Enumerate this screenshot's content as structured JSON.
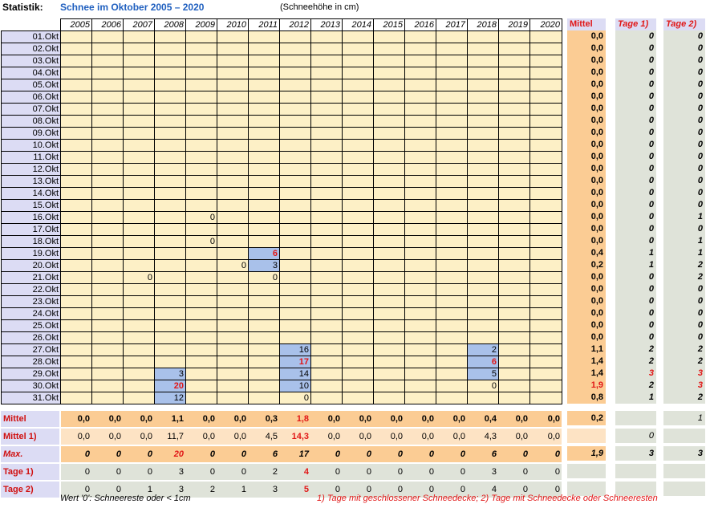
{
  "header": {
    "label": "Statistik:",
    "title": "Schnee im Oktober 2005 – 2020",
    "unit": "(Schneehöhe in cm)"
  },
  "years": [
    "2005",
    "2006",
    "2007",
    "2008",
    "2009",
    "2010",
    "2011",
    "2012",
    "2013",
    "2014",
    "2015",
    "2016",
    "2017",
    "2018",
    "2019",
    "2020"
  ],
  "side_headers": {
    "mittel": "Mittel",
    "tage1": "Tage 1)",
    "tage2": "Tage 2)"
  },
  "rows": [
    {
      "date": "01.Okt",
      "cells": {},
      "mittel": "0,0",
      "tage1": "0",
      "tage2": "0"
    },
    {
      "date": "02.Okt",
      "cells": {},
      "mittel": "0,0",
      "tage1": "0",
      "tage2": "0"
    },
    {
      "date": "03.Okt",
      "cells": {},
      "mittel": "0,0",
      "tage1": "0",
      "tage2": "0"
    },
    {
      "date": "04.Okt",
      "cells": {},
      "mittel": "0,0",
      "tage1": "0",
      "tage2": "0"
    },
    {
      "date": "05.Okt",
      "cells": {},
      "mittel": "0,0",
      "tage1": "0",
      "tage2": "0"
    },
    {
      "date": "06.Okt",
      "cells": {},
      "mittel": "0,0",
      "tage1": "0",
      "tage2": "0"
    },
    {
      "date": "07.Okt",
      "cells": {},
      "mittel": "0,0",
      "tage1": "0",
      "tage2": "0"
    },
    {
      "date": "08.Okt",
      "cells": {},
      "mittel": "0,0",
      "tage1": "0",
      "tage2": "0"
    },
    {
      "date": "09.Okt",
      "cells": {},
      "mittel": "0,0",
      "tage1": "0",
      "tage2": "0"
    },
    {
      "date": "10.Okt",
      "cells": {},
      "mittel": "0,0",
      "tage1": "0",
      "tage2": "0"
    },
    {
      "date": "11.Okt",
      "cells": {},
      "mittel": "0,0",
      "tage1": "0",
      "tage2": "0"
    },
    {
      "date": "12.Okt",
      "cells": {},
      "mittel": "0,0",
      "tage1": "0",
      "tage2": "0"
    },
    {
      "date": "13.Okt",
      "cells": {},
      "mittel": "0,0",
      "tage1": "0",
      "tage2": "0"
    },
    {
      "date": "14.Okt",
      "cells": {},
      "mittel": "0,0",
      "tage1": "0",
      "tage2": "0"
    },
    {
      "date": "15.Okt",
      "cells": {},
      "mittel": "0,0",
      "tage1": "0",
      "tage2": "0"
    },
    {
      "date": "16.Okt",
      "cells": {
        "2009": "0"
      },
      "mittel": "0,0",
      "tage1": "0",
      "tage2": "1"
    },
    {
      "date": "17.Okt",
      "cells": {},
      "mittel": "0,0",
      "tage1": "0",
      "tage2": "0"
    },
    {
      "date": "18.Okt",
      "cells": {
        "2009": "0"
      },
      "mittel": "0,0",
      "tage1": "0",
      "tage2": "1"
    },
    {
      "date": "19.Okt",
      "cells": {
        "2011": "6"
      },
      "mittel": "0,4",
      "tage1": "1",
      "tage2": "1"
    },
    {
      "date": "20.Okt",
      "cells": {
        "2010": "0",
        "2011": "3"
      },
      "mittel": "0,2",
      "tage1": "1",
      "tage2": "2"
    },
    {
      "date": "21.Okt",
      "cells": {
        "2007": "0",
        "2011": "0"
      },
      "mittel": "0,0",
      "tage1": "0",
      "tage2": "2"
    },
    {
      "date": "22.Okt",
      "cells": {},
      "mittel": "0,0",
      "tage1": "0",
      "tage2": "0"
    },
    {
      "date": "23.Okt",
      "cells": {},
      "mittel": "0,0",
      "tage1": "0",
      "tage2": "0"
    },
    {
      "date": "24.Okt",
      "cells": {},
      "mittel": "0,0",
      "tage1": "0",
      "tage2": "0"
    },
    {
      "date": "25.Okt",
      "cells": {},
      "mittel": "0,0",
      "tage1": "0",
      "tage2": "0"
    },
    {
      "date": "26.Okt",
      "cells": {},
      "mittel": "0,0",
      "tage1": "0",
      "tage2": "0"
    },
    {
      "date": "27.Okt",
      "cells": {
        "2012": "16",
        "2018": "2"
      },
      "mittel": "1,1",
      "tage1": "2",
      "tage2": "2"
    },
    {
      "date": "28.Okt",
      "cells": {
        "2012": "17",
        "2018": "6"
      },
      "mittel": "1,4",
      "tage1": "2",
      "tage2": "2"
    },
    {
      "date": "29.Okt",
      "cells": {
        "2008": "3",
        "2012": "14",
        "2018": "5"
      },
      "mittel": "1,4",
      "tage1": "3",
      "tage2": "3"
    },
    {
      "date": "30.Okt",
      "cells": {
        "2008": "20",
        "2012": "10",
        "2018": "0"
      },
      "mittel": "1,9",
      "tage1": "2",
      "tage2": "3"
    },
    {
      "date": "31.Okt",
      "cells": {
        "2008": "12",
        "2012": "0"
      },
      "mittel": "0,8",
      "tage1": "1",
      "tage2": "2"
    }
  ],
  "summary": [
    {
      "label": "Mittel",
      "values": [
        "0,0",
        "0,0",
        "0,0",
        "1,1",
        "0,0",
        "0,0",
        "0,3",
        "1,8",
        "0,0",
        "0,0",
        "0,0",
        "0,0",
        "0,0",
        "0,4",
        "0,0",
        "0,0"
      ],
      "side": "0,2",
      "tage1": "",
      "tage2": "1"
    },
    {
      "label": "Mittel 1)",
      "values": [
        "0,0",
        "0,0",
        "0,0",
        "11,7",
        "0,0",
        "0,0",
        "4,5",
        "14,3",
        "0,0",
        "0,0",
        "0,0",
        "0,0",
        "0,0",
        "4,3",
        "0,0",
        "0,0"
      ],
      "side": "",
      "tage1": "0",
      "tage2": ""
    },
    {
      "label": "Max.",
      "values": [
        "0",
        "0",
        "0",
        "20",
        "0",
        "0",
        "6",
        "17",
        "0",
        "0",
        "0",
        "0",
        "0",
        "6",
        "0",
        "0"
      ],
      "side": "1,9",
      "tage1": "3",
      "tage2": "3"
    },
    {
      "label": "Tage 1)",
      "values": [
        "0",
        "0",
        "0",
        "3",
        "0",
        "0",
        "2",
        "4",
        "0",
        "0",
        "0",
        "0",
        "0",
        "3",
        "0",
        "0"
      ],
      "side": "",
      "tage1": "",
      "tage2": ""
    },
    {
      "label": "Tage 2)",
      "values": [
        "0",
        "0",
        "1",
        "3",
        "2",
        "1",
        "3",
        "5",
        "0",
        "0",
        "0",
        "0",
        "0",
        "4",
        "0",
        "0"
      ],
      "side": "",
      "tage1": "",
      "tage2": ""
    }
  ],
  "footnotes": {
    "left": "Wert '0': Schneereste oder < 1cm",
    "right": "1) Tage mit geschlossener Schneedecke;  2) Tage mit Schneedecke oder Schneeresten"
  },
  "colors": {
    "title_blue": "#1f5fbf",
    "accent_red": "#e11717",
    "cell_fill": "#fdf0c6",
    "snow_highlight": "#a9c1ea",
    "mittel_fill": "#fbcc94",
    "tage_fill": "#dfe3d9",
    "date_fill": "#dcdcf4"
  }
}
